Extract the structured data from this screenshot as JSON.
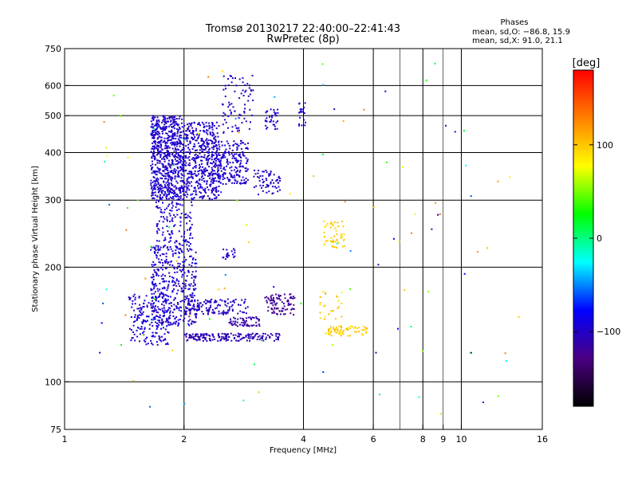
{
  "chart_data": {
    "type": "scatter",
    "title": "Tromsø 20130217 22:40:00–22:41:43",
    "subtitle": "RwPretec (8p)",
    "xlabel": "Frequency [MHz]",
    "ylabel": "Stationary phase Virtual Height [km]",
    "xscale": "log",
    "yscale": "log",
    "xlim": [
      1,
      16
    ],
    "ylim": [
      75,
      750
    ],
    "xticks": [
      1,
      2,
      4,
      6,
      8,
      9,
      10,
      16
    ],
    "xtick_labels": [
      "1",
      "2",
      "4",
      "6",
      "8",
      "9",
      "10",
      "16"
    ],
    "xminor_lines": [
      7,
      9
    ],
    "xgrid_lines": [
      2,
      4,
      6,
      8,
      10
    ],
    "yticks": [
      75,
      100,
      200,
      300,
      400,
      500,
      600,
      750
    ],
    "ytick_labels": [
      "75",
      "100",
      "200",
      "300",
      "400",
      "500",
      "600",
      "750"
    ],
    "ygrid_lines": [
      100,
      200,
      300,
      400,
      500,
      600
    ],
    "grid": true,
    "stats": {
      "header": "Phases",
      "line_o": "mean, sd,O: −86.8, 15.9",
      "line_x": "mean, sd,X:  91.0, 21.1"
    },
    "colorbar": {
      "label": "[deg]",
      "range": [
        -180,
        180
      ],
      "ticks": [
        100,
        0,
        -100
      ],
      "tick_labels": [
        "100",
        "0",
        "−100"
      ],
      "colors": [
        "#000000",
        "#4b0082",
        "#0000ff",
        "#00ffff",
        "#00ff00",
        "#ffff00",
        "#ff8000",
        "#ff0000"
      ]
    },
    "clusters": [
      {
        "f": [
          1.65,
          2.0
        ],
        "h": [
          300,
          500
        ],
        "phase": [
          -110,
          -85
        ],
        "n": 700
      },
      {
        "f": [
          2.0,
          2.45
        ],
        "h": [
          300,
          480
        ],
        "phase": [
          -110,
          -85
        ],
        "n": 450
      },
      {
        "f": [
          2.35,
          2.9
        ],
        "h": [
          330,
          430
        ],
        "phase": [
          -110,
          -85
        ],
        "n": 220
      },
      {
        "f": [
          2.5,
          3.0
        ],
        "h": [
          450,
          640
        ],
        "phase": [
          -110,
          -90
        ],
        "n": 80
      },
      {
        "f": [
          1.7,
          2.1
        ],
        "h": [
          230,
          300
        ],
        "phase": [
          -110,
          -85
        ],
        "n": 120
      },
      {
        "f": [
          1.65,
          2.15
        ],
        "h": [
          140,
          230
        ],
        "phase": [
          -110,
          -85
        ],
        "n": 400
      },
      {
        "f": [
          1.45,
          1.85
        ],
        "h": [
          125,
          170
        ],
        "phase": [
          -110,
          -80
        ],
        "n": 180
      },
      {
        "f": [
          2.0,
          2.9
        ],
        "h": [
          150,
          165
        ],
        "phase": [
          -110,
          -95
        ],
        "n": 140
      },
      {
        "f": [
          2.0,
          3.5
        ],
        "h": [
          128,
          134
        ],
        "phase": [
          -115,
          -100
        ],
        "n": 180
      },
      {
        "f": [
          3.2,
          3.8
        ],
        "h": [
          150,
          170
        ],
        "phase": [
          -130,
          -115
        ],
        "n": 90
      },
      {
        "f": [
          2.6,
          3.1
        ],
        "h": [
          140,
          148
        ],
        "phase": [
          -120,
          -105
        ],
        "n": 60
      },
      {
        "f": [
          3.0,
          3.5
        ],
        "h": [
          310,
          360
        ],
        "phase": [
          -110,
          -90
        ],
        "n": 60
      },
      {
        "f": [
          3.2,
          3.45
        ],
        "h": [
          460,
          520
        ],
        "phase": [
          -105,
          -90
        ],
        "n": 35
      },
      {
        "f": [
          3.9,
          4.05
        ],
        "h": [
          470,
          540
        ],
        "phase": [
          -105,
          -90
        ],
        "n": 20
      },
      {
        "f": [
          2.5,
          2.7
        ],
        "h": [
          210,
          225
        ],
        "phase": [
          -105,
          -90
        ],
        "n": 20
      },
      {
        "f": [
          4.5,
          5.1
        ],
        "h": [
          225,
          265
        ],
        "phase": [
          90,
          105
        ],
        "n": 50
      },
      {
        "f": [
          4.5,
          5.8
        ],
        "h": [
          132,
          140
        ],
        "phase": [
          85,
          110
        ],
        "n": 70
      },
      {
        "f": [
          4.4,
          5.0
        ],
        "h": [
          145,
          175
        ],
        "phase": [
          80,
          110
        ],
        "n": 25
      },
      {
        "f": [
          1.2,
          14.0
        ],
        "h": [
          80,
          700
        ],
        "phase": [
          -120,
          140
        ],
        "n": 110
      }
    ]
  }
}
